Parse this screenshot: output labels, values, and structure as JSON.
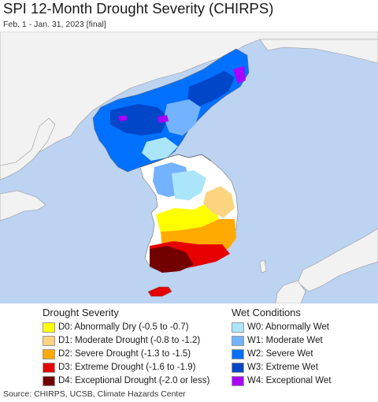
{
  "header": {
    "title": "SPI 12-Month Drought Severity (CHIRPS)",
    "subtitle": "Feb. 1 - Jan. 31, 2023 [final]"
  },
  "legend": {
    "drought_title": "Drought Severity",
    "drought_items": [
      {
        "code": "D0",
        "label": "D0: Abnormally Dry (-0.5 to -0.7)",
        "color": "#ffff00"
      },
      {
        "code": "D1",
        "label": "D1: Moderate Drought (-0.8 to -1.2)",
        "color": "#fcd37f"
      },
      {
        "code": "D2",
        "label": "D2: Severe Drought (-1.3 to -1.5)",
        "color": "#ffaa00"
      },
      {
        "code": "D3",
        "label": "D3: Extreme Drought (-1.6 to -1.9)",
        "color": "#e60000"
      },
      {
        "code": "D4",
        "label": "D4: Exceptional Drought (-2.0 or less)",
        "color": "#730000"
      }
    ],
    "wet_title": "Wet Conditions",
    "wet_items": [
      {
        "code": "W0",
        "label": "W0: Abnormally Wet",
        "color": "#aae5fa"
      },
      {
        "code": "W1",
        "label": "W1: Moderate Wet",
        "color": "#73b2ff"
      },
      {
        "code": "W2",
        "label": "W2: Severe Wet",
        "color": "#0070ff"
      },
      {
        "code": "W3",
        "label": "W3: Extreme Wet",
        "color": "#0046c8"
      },
      {
        "code": "W4",
        "label": "W4: Exceptional Wet",
        "color": "#aa00ff"
      }
    ]
  },
  "colors": {
    "water": "#bcd3f2",
    "land_other": "#f2f2f2",
    "normal": "#ffffff",
    "border": "#888888"
  },
  "source": "Source: CHIRPS, UCSB, Climate Hazards Center"
}
